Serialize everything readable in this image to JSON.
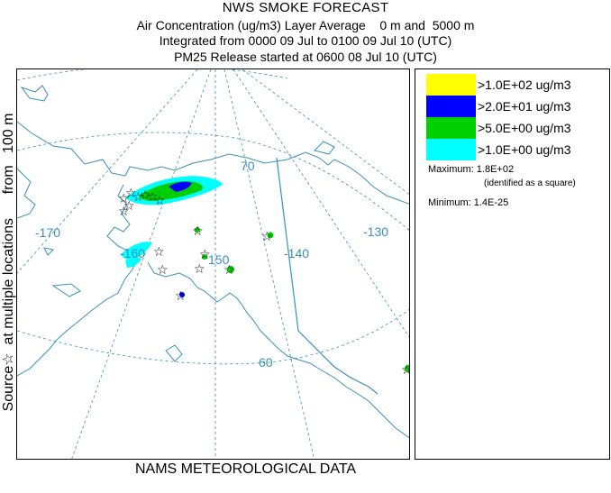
{
  "header": {
    "title": "NWS SMOKE FORECAST",
    "line2": "Air Concentration (ug/m3) Layer Average    0 m and  5000 m",
    "line3": "Integrated from 0000 09 Jul to 0100 09 Jul 10 (UTC)",
    "line4": "PM25 Release started at 0600 08 Jul 10 (UTC)"
  },
  "side_label": "Source☆  at multiple locations      from   100 m",
  "footer": "NAMS METEOROLOGICAL DATA",
  "legend": {
    "items": [
      {
        "label": ">1.0E+02 ug/m3",
        "color": "#ffff00"
      },
      {
        "label": ">2.0E+01 ug/m3",
        "color": "#0000ff"
      },
      {
        "label": ">5.0E+00 ug/m3",
        "color": "#00d000"
      },
      {
        "label": ">1.0E+00 ug/m3",
        "color": "#00ffff"
      }
    ],
    "maximum": "Maximum: 1.8E+02",
    "max_note": "(identified as a square)",
    "minimum": "Minimum: 1.4E-25"
  },
  "grid_labels": {
    "lat_70": "70",
    "lat_60": "60",
    "lon_m170": "-170",
    "lon_m160": "-160",
    "lon_m150": "150",
    "lon_m140": "-140",
    "lon_m130": "-130"
  },
  "colors": {
    "coast": "#3a8fbf",
    "grid": "#3a8fbf"
  }
}
